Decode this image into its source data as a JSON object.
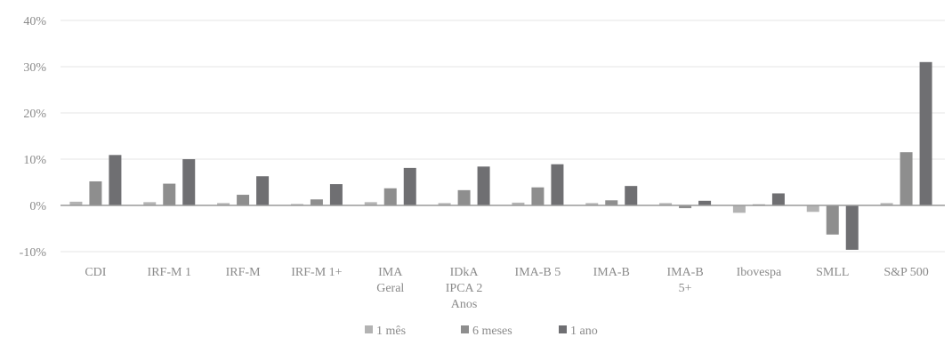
{
  "chart_data": {
    "type": "bar",
    "categories": [
      [
        "CDI"
      ],
      [
        "IRF-M 1"
      ],
      [
        "IRF-M"
      ],
      [
        "IRF-M 1+"
      ],
      [
        "IMA",
        "Geral"
      ],
      [
        "IDkA",
        "IPCA 2",
        "Anos"
      ],
      [
        "IMA-B 5"
      ],
      [
        "IMA-B"
      ],
      [
        "IMA-B",
        "5+"
      ],
      [
        "Ibovespa"
      ],
      [
        "SMLL"
      ],
      [
        "S&P 500"
      ]
    ],
    "series": [
      {
        "name": "1 mês",
        "color": "#b3b3b3",
        "values": [
          0.8,
          0.7,
          0.5,
          0.3,
          0.7,
          0.5,
          0.6,
          0.5,
          0.5,
          -1.6,
          -1.4,
          0.5
        ]
      },
      {
        "name": "6 meses",
        "color": "#8e8e8e",
        "values": [
          5.2,
          4.7,
          2.3,
          1.3,
          3.7,
          3.3,
          3.9,
          1.1,
          -0.6,
          0.0,
          -6.3,
          11.5
        ]
      },
      {
        "name": "1 ano",
        "color": "#6f6f72",
        "values": [
          10.9,
          10.0,
          6.3,
          4.6,
          8.1,
          8.4,
          8.9,
          4.2,
          1.0,
          2.6,
          -9.6,
          31.0
        ]
      }
    ],
    "yticks": [
      "40%",
      "30%",
      "20%",
      "10%",
      "0%",
      "-10%"
    ],
    "ylim": [
      -10,
      40
    ],
    "grid": true,
    "legend_position": "bottom"
  }
}
